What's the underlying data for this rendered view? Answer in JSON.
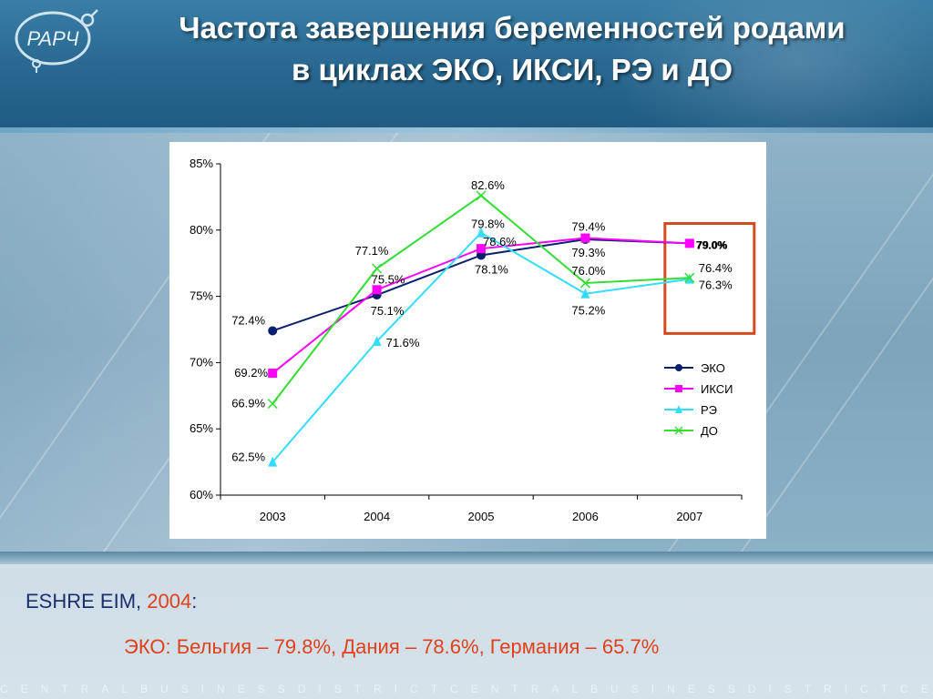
{
  "title_line1": "Частота завершения беременностей родами",
  "title_line2": "в циклах ЭКО, ИКСИ, РЭ и ДО",
  "logo_text": "РАРЧ",
  "ticker_text": "CENTRALBUSINESSDISTRICTCENTRALBUSINESSDISTRICTCENTRA",
  "note": {
    "source": "ESHRE EIM,",
    "year": "2004",
    "colon": ":",
    "detail": "ЭКО: Бельгия – 79.8%, Дания – 78.6%, Германия – 65.7%"
  },
  "colors": {
    "eko": "#0a1f6e",
    "iksi": "#ff00ff",
    "re": "#33ddff",
    "do": "#33dd33",
    "highlight": "#d4491f"
  },
  "chart_data": {
    "type": "line",
    "categories": [
      "2003",
      "2004",
      "2005",
      "2006",
      "2007"
    ],
    "ylim": [
      60,
      85
    ],
    "yticks": [
      "60%",
      "65%",
      "70%",
      "75%",
      "80%",
      "85%"
    ],
    "ytick_values": [
      60,
      65,
      70,
      75,
      80,
      85
    ],
    "grid": false,
    "legend_position": "right, lower",
    "highlight_category": "2007",
    "series": [
      {
        "name": "ЭКО",
        "key": "eko",
        "marker": "circle",
        "values": [
          72.4,
          75.1,
          78.1,
          79.3,
          79.0
        ],
        "labels": [
          "72.4%",
          "75.1%",
          "78.1%",
          "79.3%",
          "79.0%"
        ]
      },
      {
        "name": "ИКСИ",
        "key": "iksi",
        "marker": "square",
        "values": [
          69.2,
          75.5,
          78.6,
          79.4,
          79.0
        ],
        "labels": [
          "69.2%",
          "75.5%",
          "78.6%",
          "79.4%",
          "79.0%"
        ]
      },
      {
        "name": "РЭ",
        "key": "re",
        "marker": "triangle",
        "values": [
          62.5,
          71.6,
          79.8,
          75.2,
          76.3
        ],
        "labels": [
          "62.5%",
          "71.6%",
          "79.8%",
          "75.2%",
          "76.3%"
        ]
      },
      {
        "name": "ДО",
        "key": "do",
        "marker": "x",
        "values": [
          66.9,
          77.1,
          82.6,
          76.0,
          76.4
        ],
        "labels": [
          "66.9%",
          "77.1%",
          "82.6%",
          "76.0%",
          "76.4%"
        ]
      }
    ]
  }
}
